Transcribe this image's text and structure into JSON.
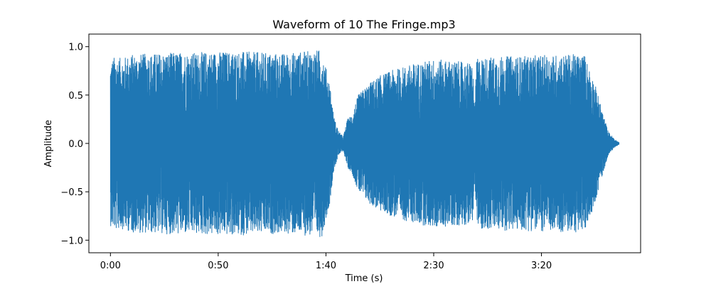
{
  "chart_data": {
    "type": "line",
    "title": "Waveform of 10 The Fringe.mp3",
    "xlabel": "Time (s)",
    "ylabel": "Amplitude",
    "xlim": [
      -10,
      246
    ],
    "ylim": [
      -1.13,
      1.13
    ],
    "x_ticks": [
      {
        "value": 0,
        "label": "0:00"
      },
      {
        "value": 50,
        "label": "0:50"
      },
      {
        "value": 100,
        "label": "1:40"
      },
      {
        "value": 150,
        "label": "2:30"
      },
      {
        "value": 200,
        "label": "3:20"
      }
    ],
    "y_ticks": [
      {
        "value": 1.0,
        "label": "1.0"
      },
      {
        "value": 0.5,
        "label": "0.5"
      },
      {
        "value": 0.0,
        "label": "0.0"
      },
      {
        "value": -0.5,
        "label": "−0.5"
      },
      {
        "value": -1.0,
        "label": "−1.0"
      }
    ],
    "grid": false,
    "line_color": "#1f77b4",
    "series": [
      {
        "envelope": {
          "t": [
            0,
            2,
            5,
            10,
            20,
            30,
            40,
            50,
            60,
            70,
            80,
            90,
            98,
            102,
            103,
            104,
            106,
            108,
            110,
            112,
            115,
            120,
            125,
            130,
            140,
            150,
            160,
            168,
            169,
            170,
            180,
            190,
            200,
            210,
            220,
            225,
            228,
            231,
            234,
            236
          ],
          "amp": [
            0.85,
            0.9,
            0.88,
            0.92,
            0.93,
            0.94,
            0.94,
            0.95,
            0.95,
            0.94,
            0.93,
            0.95,
            0.97,
            0.6,
            0.38,
            0.25,
            0.12,
            0.07,
            0.25,
            0.3,
            0.5,
            0.62,
            0.7,
            0.75,
            0.82,
            0.87,
            0.85,
            0.83,
            0.4,
            0.88,
            0.9,
            0.9,
            0.91,
            0.92,
            0.92,
            0.6,
            0.35,
            0.12,
            0.04,
            0.01
          ]
        }
      }
    ]
  }
}
